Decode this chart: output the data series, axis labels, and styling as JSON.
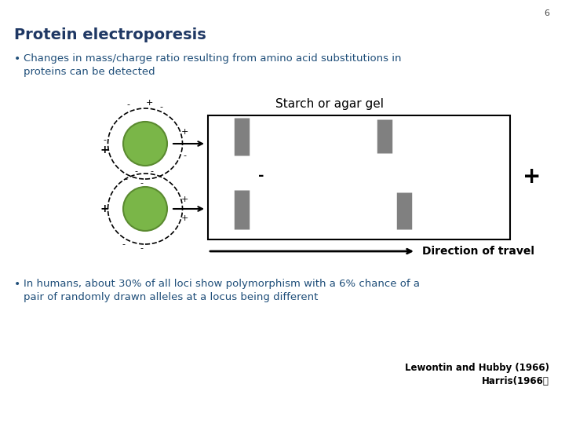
{
  "title": "Protein electroporesis",
  "slide_number": "6",
  "bullet1_line1": "Changes in mass/charge ratio resulting from amino acid substitutions in",
  "bullet1_line2": "proteins can be detected",
  "bullet2_line1": "In humans, about 30% of all loci show polymorphism with a 6% chance of a",
  "bullet2_line2": "pair of randomly drawn alleles at a locus being different",
  "citation_line1": "Lewontin and Hubby (1966)",
  "citation_line2": "Harris(1966）",
  "starch_label": "Starch or agar gel",
  "direction_label": "Direction of travel",
  "title_color": "#1F3864",
  "bullet_color": "#1F4E79",
  "text_color": "#000000",
  "ball_color": "#7AB648",
  "ball_outline": "#5A8A30",
  "bg_color": "#FFFFFF",
  "band_color": "#808080"
}
